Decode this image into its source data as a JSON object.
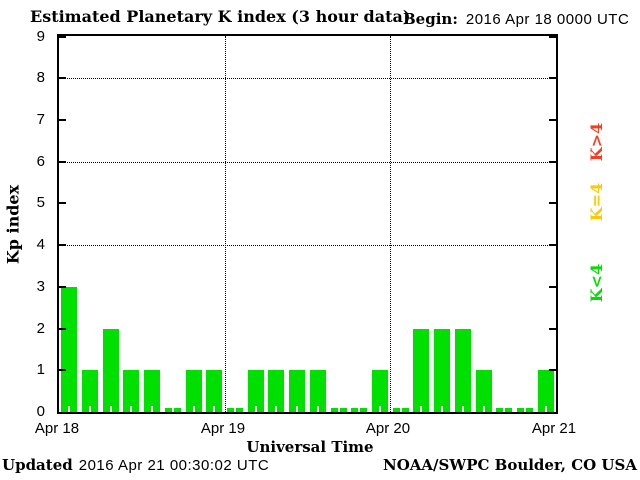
{
  "header": {
    "title": "Estimated Planetary K index (3 hour data)",
    "begin_label": "Begin:",
    "begin_value": "2016 Apr 18 0000 UTC"
  },
  "footer": {
    "updated_label": "Updated",
    "updated_value": "2016 Apr 21 00:30:02 UTC",
    "source": "NOAA/SWPC Boulder, CO USA"
  },
  "chart_data": {
    "type": "bar",
    "title": "Estimated Planetary K index (3 hour data)",
    "xlabel": "Universal Time",
    "ylabel": "Kp index",
    "ylim": [
      0,
      9
    ],
    "y_ticks": [
      "0",
      "1",
      "2",
      "3",
      "4",
      "5",
      "6",
      "7",
      "8",
      "9"
    ],
    "x_ticks": [
      "Apr 18",
      "Apr 19",
      "Apr 20",
      "Apr 21"
    ],
    "grid_y_values": [
      4,
      6,
      8
    ],
    "day_boundary_lines": [
      "Apr 19",
      "Apr 20"
    ],
    "bar_interval_hours": 3,
    "bars_per_day": 8,
    "series": [
      {
        "name": "Estimated Kp",
        "days": [
          "Apr 18",
          "Apr 19",
          "Apr 20"
        ],
        "values": [
          3,
          1,
          2,
          1,
          1,
          0,
          1,
          1,
          0,
          1,
          1,
          1,
          1,
          0,
          0,
          1,
          0,
          2,
          2,
          2,
          1,
          0,
          0,
          1
        ]
      }
    ],
    "color_rules": {
      "k_lt_4": "#00e000",
      "k_eq_4": "#ffc800",
      "k_gt_4": "#fa3c1e"
    },
    "legend": [
      {
        "label": "K>4",
        "color": "#fa3c1e"
      },
      {
        "label": "K=4",
        "color": "#ffc800"
      },
      {
        "label": "K<4",
        "color": "#00e000"
      }
    ],
    "legend_position": "right",
    "grid": "dotted"
  }
}
